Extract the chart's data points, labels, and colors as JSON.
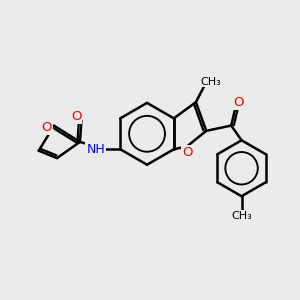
{
  "bg_color": "#ebebeb",
  "bond_color": "#000000",
  "bond_width": 1.8,
  "atom_colors": {
    "O": "#ff0000",
    "N": "#0000ff",
    "C": "#000000"
  },
  "figsize": [
    3.0,
    3.0
  ],
  "dpi": 100,
  "xlim": [
    0,
    10
  ],
  "ylim": [
    0,
    10
  ],
  "scale": 1.0
}
